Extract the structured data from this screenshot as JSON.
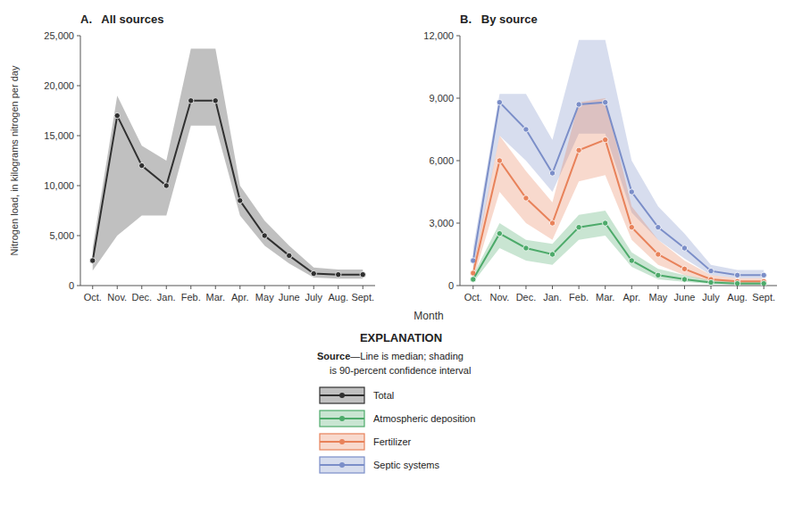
{
  "chart_data": [
    {
      "type": "line",
      "title": "A.   All sources",
      "ylabel": "Nitrogen load, in kilograms nitrogen per day",
      "categories": [
        "Oct.",
        "Nov.",
        "Dec.",
        "Jan.",
        "Feb.",
        "Mar.",
        "Apr.",
        "May",
        "June",
        "July",
        "Aug.",
        "Sept."
      ],
      "series": [
        {
          "name": "Total",
          "color": "#303030",
          "values": [
            2500,
            17000,
            12000,
            10000,
            18500,
            18500,
            8500,
            5000,
            3000,
            1200,
            1100,
            1100
          ],
          "lower": [
            1500,
            5000,
            7000,
            7000,
            16000,
            16000,
            7000,
            4000,
            2200,
            800,
            700,
            700
          ],
          "upper": [
            3800,
            19000,
            14000,
            12500,
            23700,
            23700,
            10000,
            6500,
            4000,
            1800,
            1600,
            1600
          ]
        }
      ],
      "ylim": [
        0,
        25000
      ],
      "yticks": [
        0,
        {
          "value": 5000,
          "label": "5,000"
        },
        {
          "value": 10000,
          "label": "10,000"
        },
        {
          "value": 15000,
          "label": "15,000"
        },
        {
          "value": 20000,
          "label": "20,000"
        },
        {
          "value": 25000,
          "label": "25,000"
        }
      ],
      "grid": false,
      "marker": "circle",
      "legend": "bottom"
    },
    {
      "type": "line",
      "title": "B.   By source",
      "xlabel": "Month",
      "categories": [
        "Oct.",
        "Nov.",
        "Dec.",
        "Jan.",
        "Feb.",
        "Mar.",
        "Apr.",
        "May",
        "June",
        "July",
        "Aug.",
        "Sept."
      ],
      "series": [
        {
          "name": "Septic systems",
          "color": "#7b8ec8",
          "values": [
            1200,
            8800,
            7500,
            5400,
            8700,
            8800,
            4500,
            2800,
            1800,
            700,
            500,
            500
          ],
          "lower": [
            700,
            7200,
            6000,
            4500,
            7300,
            7300,
            3500,
            2200,
            1300,
            500,
            350,
            350
          ],
          "upper": [
            1800,
            9200,
            9200,
            7000,
            11800,
            11800,
            6000,
            3800,
            2500,
            1000,
            750,
            750
          ]
        },
        {
          "name": "Fertilizer",
          "color": "#e8825a",
          "values": [
            600,
            6000,
            4200,
            3000,
            6500,
            7000,
            2800,
            1500,
            800,
            300,
            200,
            200
          ],
          "lower": [
            300,
            4500,
            3000,
            2200,
            5000,
            5300,
            2200,
            1000,
            500,
            200,
            130,
            130
          ],
          "upper": [
            900,
            7200,
            5500,
            4000,
            8800,
            9000,
            3800,
            2200,
            1200,
            500,
            350,
            350
          ]
        },
        {
          "name": "Atmospheric deposition",
          "color": "#4daa6a",
          "values": [
            300,
            2500,
            1800,
            1500,
            2800,
            3000,
            1200,
            500,
            300,
            150,
            100,
            100
          ],
          "lower": [
            150,
            1800,
            1200,
            1000,
            2200,
            2400,
            900,
            300,
            180,
            80,
            60,
            60
          ],
          "upper": [
            500,
            3000,
            2200,
            2000,
            3400,
            3600,
            1600,
            800,
            500,
            250,
            200,
            200
          ]
        }
      ],
      "ylim": [
        0,
        12000
      ],
      "yticks": [
        0,
        {
          "value": 3000,
          "label": "3,000"
        },
        {
          "value": 6000,
          "label": "6,000"
        },
        {
          "value": 9000,
          "label": "9,000"
        },
        {
          "value": 12000,
          "label": "12,000"
        }
      ],
      "grid": false,
      "marker": "circle",
      "annotations": [
        "EXPLANATION",
        "Source",
        "—Line is median; shading",
        "is 90-percent confidence interval"
      ]
    }
  ]
}
